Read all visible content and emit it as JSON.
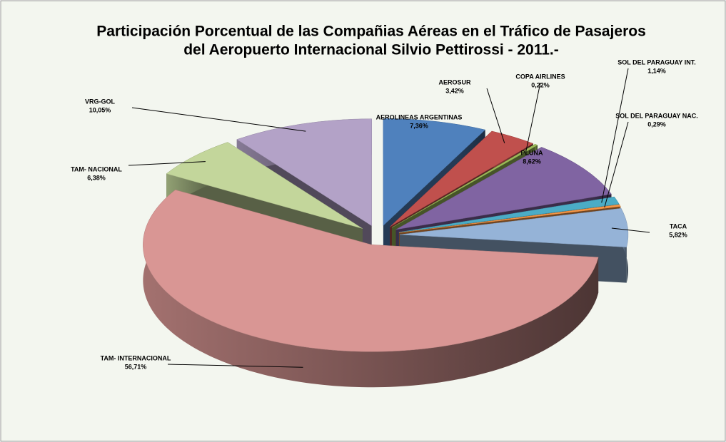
{
  "chart_data": {
    "type": "pie",
    "title": [
      "Participación Porcentual de las Compañias Aéreas en el Tráfico de Pasajeros",
      "del Aeropuerto Internacional Silvio Pettirossi - 2011.-"
    ],
    "categories": [
      "AEROLINEAS ARGENTINAS",
      "AEROSUR",
      "COPA AIRLINES",
      "PLUNA",
      "SOL DEL  PARAGUAY INT.",
      "SOL DEL  PARAGUAY NAC.",
      "TACA",
      "TAM- INTERNACIONAL",
      "TAM- NACIONAL",
      "VRG-GOL"
    ],
    "values": [
      7.36,
      3.42,
      0.22,
      8.62,
      1.14,
      0.29,
      5.82,
      56.71,
      6.38,
      10.05
    ],
    "value_labels": [
      "7,36%",
      "3,42%",
      "0,22%",
      "8,62%",
      "1,14%",
      "0,29%",
      "5,82%",
      "56,71%",
      "6,38%",
      "10,05%"
    ],
    "colors": [
      "#4f81bd",
      "#c0504d",
      "#9bbb59",
      "#8064a2",
      "#4bacc6",
      "#f79646",
      "#95b3d7",
      "#d99694",
      "#c3d69b",
      "#b3a2c7"
    ]
  }
}
